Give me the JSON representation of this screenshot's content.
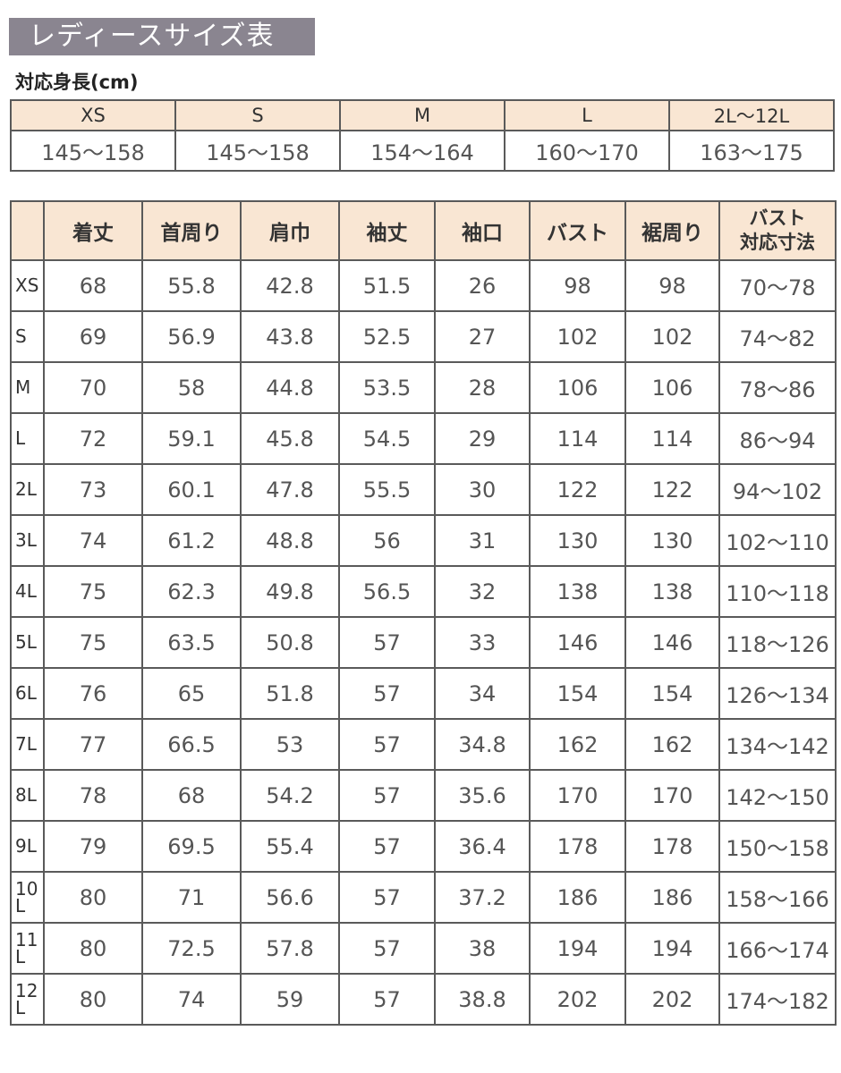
{
  "title": "レディースサイズ表",
  "height_label": "対応身長(cm)",
  "height_table": {
    "sizes": [
      "XS",
      "S",
      "M",
      "L",
      "2L〜12L"
    ],
    "heights": [
      "145〜158",
      "145〜158",
      "154〜164",
      "160〜170",
      "163〜175"
    ]
  },
  "size_table": {
    "headers": [
      "",
      "着丈",
      "首周り",
      "肩巾",
      "袖丈",
      "袖口",
      "バスト",
      "裾周り",
      "バスト\n対応寸法"
    ],
    "rows": [
      [
        "XS",
        "68",
        "55.8",
        "42.8",
        "51.5",
        "26",
        "98",
        "98",
        "70〜78"
      ],
      [
        "S",
        "69",
        "56.9",
        "43.8",
        "52.5",
        "27",
        "102",
        "102",
        "74〜82"
      ],
      [
        "M",
        "70",
        "58",
        "44.8",
        "53.5",
        "28",
        "106",
        "106",
        "78〜86"
      ],
      [
        "L",
        "72",
        "59.1",
        "45.8",
        "54.5",
        "29",
        "114",
        "114",
        "86〜94"
      ],
      [
        "2L",
        "73",
        "60.1",
        "47.8",
        "55.5",
        "30",
        "122",
        "122",
        "94〜102"
      ],
      [
        "3L",
        "74",
        "61.2",
        "48.8",
        "56",
        "31",
        "130",
        "130",
        "102〜110"
      ],
      [
        "4L",
        "75",
        "62.3",
        "49.8",
        "56.5",
        "32",
        "138",
        "138",
        "110〜118"
      ],
      [
        "5L",
        "75",
        "63.5",
        "50.8",
        "57",
        "33",
        "146",
        "146",
        "118〜126"
      ],
      [
        "6L",
        "76",
        "65",
        "51.8",
        "57",
        "34",
        "154",
        "154",
        "126〜134"
      ],
      [
        "7L",
        "77",
        "66.5",
        "53",
        "57",
        "34.8",
        "162",
        "162",
        "134〜142"
      ],
      [
        "8L",
        "78",
        "68",
        "54.2",
        "57",
        "35.6",
        "170",
        "170",
        "142〜150"
      ],
      [
        "9L",
        "79",
        "69.5",
        "55.4",
        "57",
        "36.4",
        "178",
        "178",
        "150〜158"
      ],
      [
        "10L",
        "80",
        "71",
        "56.6",
        "57",
        "37.2",
        "186",
        "186",
        "158〜166"
      ],
      [
        "11L",
        "80",
        "72.5",
        "57.8",
        "57",
        "38",
        "194",
        "194",
        "166〜174"
      ],
      [
        "12L",
        "80",
        "74",
        "59",
        "57",
        "38.8",
        "202",
        "202",
        "174〜182"
      ]
    ]
  },
  "colors": {
    "title_bg": "#8a8590",
    "header_bg": "#f9e6d3"
  }
}
